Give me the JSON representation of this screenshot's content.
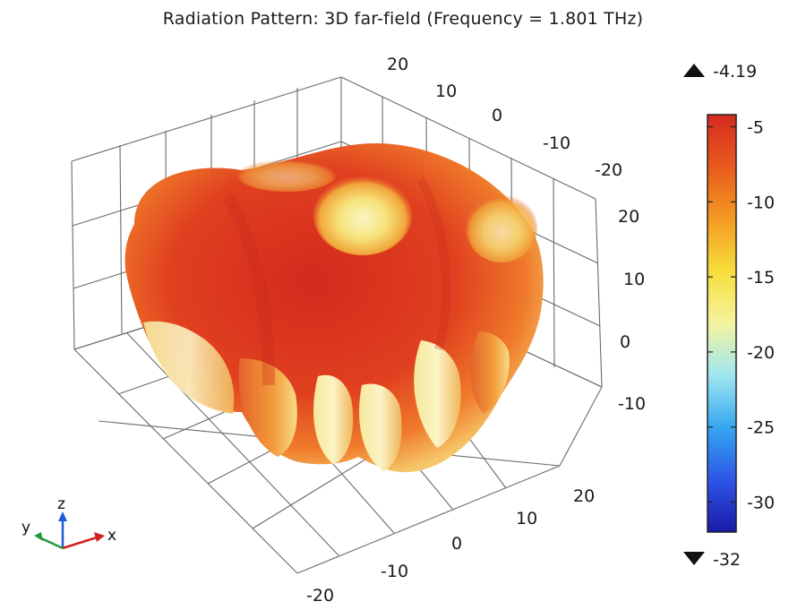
{
  "title": "Radiation Pattern: 3D far-field (Frequency = 1.801 THz)",
  "chart_data": {
    "type": "surface",
    "title": "Radiation Pattern: 3D far-field (Frequency = 1.801 THz)",
    "axes": {
      "x_ticks": [
        "-20",
        "-10",
        "0",
        "10",
        "20"
      ],
      "y_ticks": [
        "20",
        "10",
        "0",
        "-10",
        "-20"
      ],
      "z_ticks": [
        "20",
        "10",
        "0",
        "-10"
      ]
    },
    "colorbar": {
      "max": -4.19,
      "min": -32,
      "max_label": "-4.19",
      "min_label": "-32",
      "ticks": [
        {
          "value": -5,
          "label": "-5"
        },
        {
          "value": -10,
          "label": "-10"
        },
        {
          "value": -15,
          "label": "-15"
        },
        {
          "value": -20,
          "label": "-20"
        },
        {
          "value": -25,
          "label": "-25"
        },
        {
          "value": -30,
          "label": "-30"
        }
      ],
      "colormap": [
        "#1a1aa8",
        "#2d55e8",
        "#35a6f0",
        "#9fe6f0",
        "#f4f4a0",
        "#f7de3a",
        "#f49a22",
        "#e85a1e",
        "#d62a20"
      ]
    },
    "triad": {
      "x": "x",
      "y": "y",
      "z": "z"
    },
    "grid": true
  }
}
